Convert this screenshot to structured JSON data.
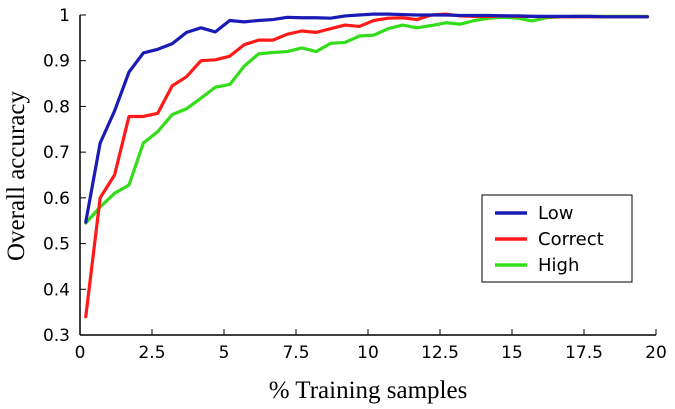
{
  "chart_data": {
    "type": "line",
    "title": "",
    "xlabel": "% Training samples",
    "ylabel": "Overall accuracy",
    "xlim": [
      0,
      20
    ],
    "ylim": [
      0.3,
      1.0
    ],
    "xticks": [
      0,
      2.5,
      5,
      7.5,
      10,
      12.5,
      15,
      17.5,
      20
    ],
    "xtick_labels": [
      "0",
      "2.5",
      "5",
      "7.5",
      "10",
      "12.5",
      "15",
      "17.5",
      "20"
    ],
    "yticks": [
      0.3,
      0.4,
      0.5,
      0.6,
      0.7,
      0.8,
      0.9,
      1.0
    ],
    "ytick_labels": [
      "0.3",
      "0.4",
      "0.5",
      "0.6",
      "0.7",
      "0.8",
      "0.9",
      "1"
    ],
    "grid": false,
    "legend_position": "center-right",
    "series": [
      {
        "name": "Low",
        "color": "#1a1ab4",
        "x": [
          0.2,
          0.7,
          1.2,
          1.7,
          2.2,
          2.7,
          3.2,
          3.7,
          4.2,
          4.7,
          5.2,
          5.7,
          6.2,
          6.7,
          7.2,
          7.7,
          8.2,
          8.7,
          9.2,
          9.7,
          10.2,
          10.7,
          11.2,
          11.7,
          12.2,
          12.7,
          13.2,
          13.7,
          14.2,
          14.7,
          15.2,
          15.7,
          16.2,
          16.7,
          17.2,
          17.7,
          18.2,
          18.7,
          19.2,
          19.7
        ],
        "values": [
          0.547,
          0.72,
          0.79,
          0.875,
          0.917,
          0.925,
          0.937,
          0.962,
          0.972,
          0.963,
          0.988,
          0.985,
          0.988,
          0.99,
          0.995,
          0.994,
          0.994,
          0.993,
          0.998,
          1.0,
          1.002,
          1.002,
          1.001,
          1.0,
          1.0,
          1.0,
          0.999,
          0.999,
          0.999,
          0.998,
          0.998,
          0.997,
          0.997,
          0.997,
          0.997,
          0.997,
          0.996,
          0.996,
          0.996,
          0.996
        ]
      },
      {
        "name": "Correct",
        "color": "#ff1a1a",
        "x": [
          0.2,
          0.7,
          1.2,
          1.7,
          2.2,
          2.7,
          3.2,
          3.7,
          4.2,
          4.7,
          5.2,
          5.7,
          6.2,
          6.7,
          7.2,
          7.7,
          8.2,
          8.7,
          9.2,
          9.7,
          10.2,
          10.7,
          11.2,
          11.7,
          12.2,
          12.7,
          13.2,
          13.7,
          14.2,
          14.7,
          15.2,
          15.7,
          16.2,
          16.7,
          17.2,
          17.7,
          18.2,
          18.7,
          19.2,
          19.7
        ],
        "values": [
          0.34,
          0.6,
          0.65,
          0.778,
          0.778,
          0.785,
          0.845,
          0.865,
          0.9,
          0.902,
          0.91,
          0.935,
          0.945,
          0.945,
          0.958,
          0.965,
          0.962,
          0.97,
          0.978,
          0.975,
          0.988,
          0.993,
          0.994,
          0.99,
          1.0,
          1.002,
          0.998,
          0.997,
          0.997,
          0.998,
          0.997,
          0.997,
          0.996,
          0.996,
          0.996,
          0.996,
          0.996,
          0.996,
          0.996,
          0.996
        ]
      },
      {
        "name": "High",
        "color": "#33dd1a",
        "x": [
          0.2,
          0.7,
          1.2,
          1.7,
          2.2,
          2.7,
          3.2,
          3.7,
          4.2,
          4.7,
          5.2,
          5.7,
          6.2,
          6.7,
          7.2,
          7.7,
          8.2,
          8.7,
          9.2,
          9.7,
          10.2,
          10.7,
          11.2,
          11.7,
          12.2,
          12.7,
          13.2,
          13.7,
          14.2,
          14.7,
          15.2,
          15.7,
          16.2,
          16.7,
          17.2,
          17.7,
          18.2,
          18.7,
          19.2,
          19.7
        ],
        "values": [
          0.545,
          0.58,
          0.61,
          0.628,
          0.72,
          0.745,
          0.782,
          0.795,
          0.818,
          0.842,
          0.848,
          0.888,
          0.915,
          0.918,
          0.92,
          0.928,
          0.92,
          0.938,
          0.94,
          0.954,
          0.956,
          0.97,
          0.978,
          0.972,
          0.977,
          0.983,
          0.98,
          0.988,
          0.993,
          0.995,
          0.993,
          0.987,
          0.994,
          0.996,
          0.997,
          0.997,
          0.997,
          0.997,
          0.997,
          0.997
        ]
      }
    ]
  }
}
